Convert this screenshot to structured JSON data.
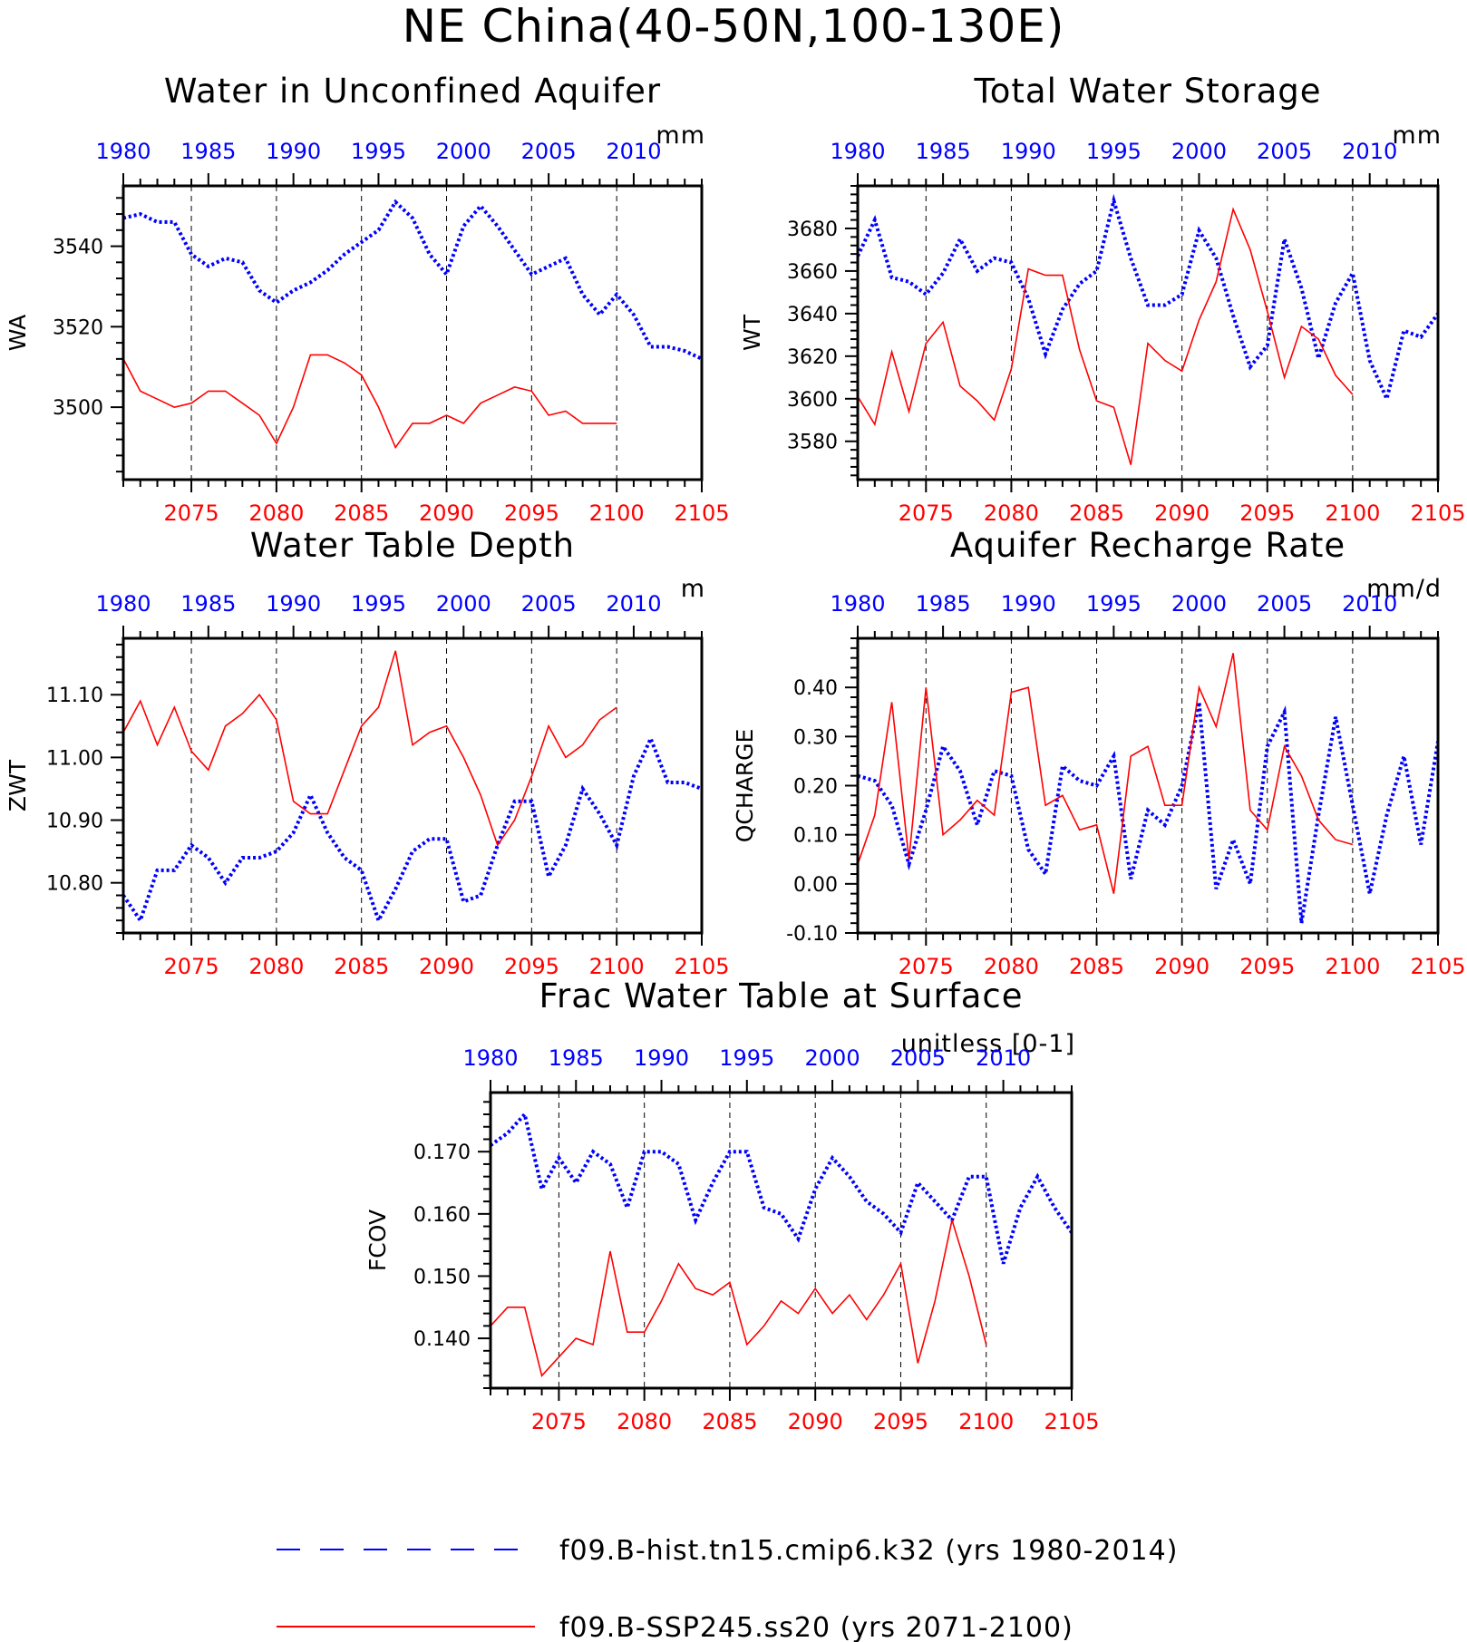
{
  "title": "NE China(40-50N,100-130E)",
  "colors": {
    "hist": "#0000ff",
    "ssp": "#ff0000",
    "axis": "#000000",
    "grid": "#000000"
  },
  "legend": {
    "hist": {
      "label": "f09.B-hist.tn15.cmip6.k32 (yrs 1980-2014)",
      "style": "dashed",
      "color": "#0000ff"
    },
    "ssp": {
      "label": "f09.B-SSP245.ss20 (yrs 2071-2100)",
      "style": "solid",
      "color": "#ff0000"
    }
  },
  "chart_data": [
    {
      "type": "line",
      "title": "Water in Unconfined Aquifer",
      "units": "mm",
      "ylabel": "WA",
      "ylim": [
        3482,
        3555
      ],
      "yticks": [
        3500,
        3520,
        3540
      ],
      "ytick_labels": [
        "3500",
        "3520",
        "3540"
      ],
      "x_bottom": {
        "lim": [
          2071,
          2105
        ],
        "ticks": [
          2075,
          2080,
          2085,
          2090,
          2095,
          2100,
          2105
        ]
      },
      "x_top": {
        "lim": [
          1980,
          2014
        ],
        "ticks": [
          1980,
          1985,
          1990,
          1995,
          2000,
          2005,
          2010
        ]
      },
      "vgrid": [
        2075,
        2080,
        2085,
        2090,
        2095,
        2100
      ],
      "series": [
        {
          "name": "f09.B-hist.tn15.cmip6.k32",
          "style": "dotted",
          "color": "#0000ff",
          "x_start": 1980,
          "values": [
            3547,
            3548,
            3546,
            3546,
            3538,
            3535,
            3537,
            3536,
            3529,
            3526,
            3529,
            3531,
            3534,
            3538,
            3541,
            3544,
            3551,
            3547,
            3538,
            3533,
            3545,
            3550,
            3545,
            3539,
            3533,
            3535,
            3537,
            3528,
            3523,
            3528,
            3523,
            3515,
            3515,
            3514,
            3512
          ]
        },
        {
          "name": "f09.B-SSP245.ss20",
          "style": "solid",
          "color": "#ff0000",
          "x_start": 2071,
          "values": [
            3512,
            3504,
            3502,
            3500,
            3501,
            3504,
            3504,
            3501,
            3498,
            3491,
            3500,
            3513,
            3513,
            3511,
            3508,
            3500,
            3490,
            3496,
            3496,
            3498,
            3496,
            3501,
            3503,
            3505,
            3504,
            3498,
            3499,
            3496,
            3496,
            3496
          ]
        }
      ]
    },
    {
      "type": "line",
      "title": "Total Water Storage",
      "units": "mm",
      "ylabel": "WT",
      "ylim": [
        3562,
        3700
      ],
      "yticks": [
        3580,
        3600,
        3620,
        3640,
        3660,
        3680
      ],
      "ytick_labels": [
        "3580",
        "3600",
        "3620",
        "3640",
        "3660",
        "3680"
      ],
      "x_bottom": {
        "lim": [
          2071,
          2105
        ],
        "ticks": [
          2075,
          2080,
          2085,
          2090,
          2095,
          2100,
          2105
        ]
      },
      "x_top": {
        "lim": [
          1980,
          2014
        ],
        "ticks": [
          1980,
          1985,
          1990,
          1995,
          2000,
          2005,
          2010
        ]
      },
      "vgrid": [
        2075,
        2080,
        2085,
        2090,
        2095,
        2100
      ],
      "series": [
        {
          "name": "f09.B-hist.tn15.cmip6.k32",
          "style": "dotted",
          "color": "#0000ff",
          "x_start": 1980,
          "values": [
            3667,
            3684,
            3657,
            3655,
            3649,
            3659,
            3675,
            3660,
            3666,
            3664,
            3647,
            3621,
            3642,
            3654,
            3660,
            3693,
            3666,
            3644,
            3644,
            3649,
            3679,
            3666,
            3639,
            3615,
            3625,
            3675,
            3652,
            3619,
            3645,
            3659,
            3618,
            3600,
            3632,
            3629,
            3640
          ]
        },
        {
          "name": "f09.B-SSP245.ss20",
          "style": "solid",
          "color": "#ff0000",
          "x_start": 2071,
          "values": [
            3601,
            3588,
            3622,
            3594,
            3626,
            3636,
            3606,
            3599,
            3590,
            3614,
            3661,
            3658,
            3658,
            3623,
            3599,
            3596,
            3569,
            3626,
            3618,
            3613,
            3637,
            3655,
            3689,
            3670,
            3641,
            3610,
            3634,
            3628,
            3611,
            3602
          ]
        }
      ]
    },
    {
      "type": "line",
      "title": "Water Table Depth",
      "units": "m",
      "ylabel": "ZWT",
      "ylim": [
        10.72,
        11.19
      ],
      "yticks": [
        10.8,
        10.9,
        11.0,
        11.1
      ],
      "ytick_labels": [
        "10.80",
        "10.90",
        "11.00",
        "11.10"
      ],
      "x_bottom": {
        "lim": [
          2071,
          2105
        ],
        "ticks": [
          2075,
          2080,
          2085,
          2090,
          2095,
          2100,
          2105
        ]
      },
      "x_top": {
        "lim": [
          1980,
          2014
        ],
        "ticks": [
          1980,
          1985,
          1990,
          1995,
          2000,
          2005,
          2010
        ]
      },
      "vgrid": [
        2075,
        2080,
        2085,
        2090,
        2095,
        2100
      ],
      "series": [
        {
          "name": "f09.B-hist.tn15.cmip6.k32",
          "style": "dotted",
          "color": "#0000ff",
          "x_start": 1980,
          "values": [
            10.78,
            10.74,
            10.82,
            10.82,
            10.86,
            10.84,
            10.8,
            10.84,
            10.84,
            10.85,
            10.88,
            10.94,
            10.88,
            10.84,
            10.82,
            10.74,
            10.79,
            10.85,
            10.87,
            10.87,
            10.77,
            10.78,
            10.86,
            10.93,
            10.93,
            10.81,
            10.86,
            10.95,
            10.91,
            10.86,
            10.97,
            11.03,
            10.96,
            10.96,
            10.95
          ]
        },
        {
          "name": "f09.B-SSP245.ss20",
          "style": "solid",
          "color": "#ff0000",
          "x_start": 2071,
          "values": [
            11.04,
            11.09,
            11.02,
            11.08,
            11.01,
            10.98,
            11.05,
            11.07,
            11.1,
            11.06,
            10.93,
            10.91,
            10.91,
            10.98,
            11.05,
            11.08,
            11.17,
            11.02,
            11.04,
            11.05,
            11.0,
            10.94,
            10.86,
            10.9,
            10.97,
            11.05,
            11.0,
            11.02,
            11.06,
            11.08
          ]
        }
      ]
    },
    {
      "type": "line",
      "title": "Aquifer Recharge Rate",
      "units": "mm/d",
      "ylabel": "QCHARGE",
      "ylim": [
        -0.1,
        0.5
      ],
      "yticks": [
        -0.1,
        0.0,
        0.1,
        0.2,
        0.3,
        0.4
      ],
      "ytick_labels": [
        "-0.10",
        "0.00",
        "0.10",
        "0.20",
        "0.30",
        "0.40"
      ],
      "x_bottom": {
        "lim": [
          2071,
          2105
        ],
        "ticks": [
          2075,
          2080,
          2085,
          2090,
          2095,
          2100,
          2105
        ]
      },
      "x_top": {
        "lim": [
          1980,
          2014
        ],
        "ticks": [
          1980,
          1985,
          1990,
          1995,
          2000,
          2005,
          2010
        ]
      },
      "vgrid": [
        2075,
        2080,
        2085,
        2090,
        2095,
        2100
      ],
      "series": [
        {
          "name": "f09.B-hist.tn15.cmip6.k32",
          "style": "dotted",
          "color": "#0000ff",
          "x_start": 1980,
          "values": [
            0.22,
            0.21,
            0.16,
            0.04,
            0.15,
            0.28,
            0.23,
            0.12,
            0.23,
            0.22,
            0.07,
            0.02,
            0.24,
            0.21,
            0.2,
            0.26,
            0.01,
            0.15,
            0.12,
            0.2,
            0.37,
            -0.01,
            0.09,
            0.0,
            0.28,
            0.35,
            -0.08,
            0.14,
            0.34,
            0.16,
            -0.02,
            0.14,
            0.26,
            0.08,
            0.29
          ]
        },
        {
          "name": "f09.B-SSP245.ss20",
          "style": "solid",
          "color": "#ff0000",
          "x_start": 2071,
          "values": [
            0.04,
            0.14,
            0.37,
            0.05,
            0.4,
            0.1,
            0.13,
            0.17,
            0.14,
            0.39,
            0.4,
            0.16,
            0.18,
            0.11,
            0.12,
            -0.02,
            0.26,
            0.28,
            0.16,
            0.16,
            0.4,
            0.32,
            0.47,
            0.15,
            0.11,
            0.28,
            0.22,
            0.13,
            0.09,
            0.08
          ]
        }
      ]
    },
    {
      "type": "line",
      "title": "Frac Water Table at Surface",
      "units": "unitless [0-1]",
      "ylabel": "FCOV",
      "ylim": [
        0.132,
        0.1795
      ],
      "yticks": [
        0.14,
        0.15,
        0.16,
        0.17
      ],
      "ytick_labels": [
        "0.140",
        "0.150",
        "0.160",
        "0.170"
      ],
      "x_bottom": {
        "lim": [
          2071,
          2105
        ],
        "ticks": [
          2075,
          2080,
          2085,
          2090,
          2095,
          2100,
          2105
        ]
      },
      "x_top": {
        "lim": [
          1980,
          2014
        ],
        "ticks": [
          1980,
          1985,
          1990,
          1995,
          2000,
          2005,
          2010
        ]
      },
      "vgrid": [
        2075,
        2080,
        2085,
        2090,
        2095,
        2100
      ],
      "series": [
        {
          "name": "f09.B-hist.tn15.cmip6.k32",
          "style": "dotted",
          "color": "#0000ff",
          "x_start": 1980,
          "values": [
            0.171,
            0.173,
            0.176,
            0.164,
            0.169,
            0.165,
            0.17,
            0.168,
            0.161,
            0.17,
            0.17,
            0.168,
            0.159,
            0.165,
            0.17,
            0.17,
            0.161,
            0.16,
            0.156,
            0.164,
            0.169,
            0.166,
            0.162,
            0.16,
            0.157,
            0.165,
            0.162,
            0.159,
            0.166,
            0.166,
            0.152,
            0.161,
            0.166,
            0.161,
            0.157
          ]
        },
        {
          "name": "f09.B-SSP245.ss20",
          "style": "solid",
          "color": "#ff0000",
          "x_start": 2071,
          "values": [
            0.142,
            0.145,
            0.145,
            0.134,
            0.137,
            0.14,
            0.139,
            0.154,
            0.141,
            0.141,
            0.146,
            0.152,
            0.148,
            0.147,
            0.149,
            0.139,
            0.142,
            0.146,
            0.144,
            0.148,
            0.144,
            0.147,
            0.143,
            0.147,
            0.152,
            0.136,
            0.146,
            0.159,
            0.15,
            0.139
          ]
        }
      ]
    }
  ]
}
